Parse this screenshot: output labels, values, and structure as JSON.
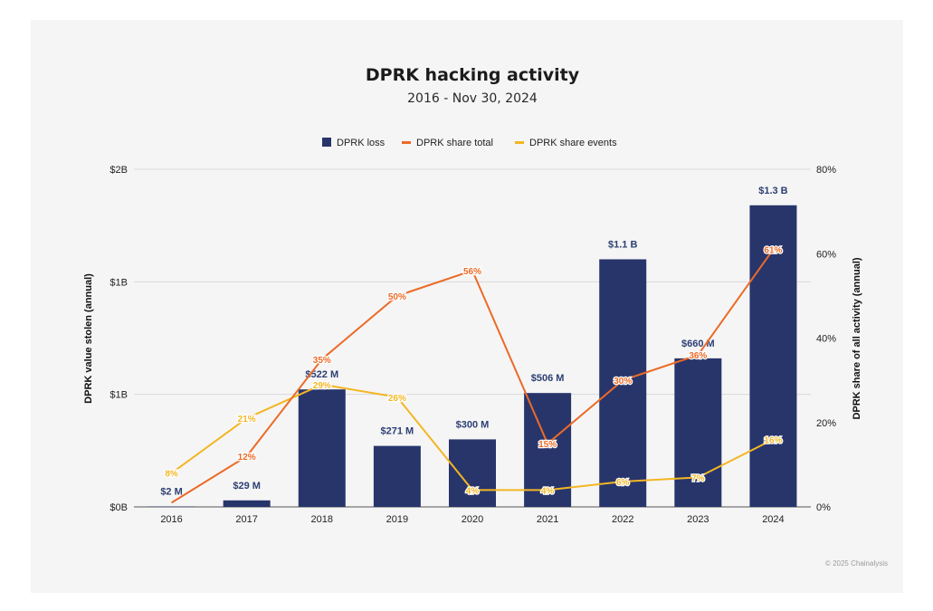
{
  "colors": {
    "bar": "#28356b",
    "share_total": "#ec6a26",
    "share_events": "#f3b623",
    "grid": "#d9d9d9",
    "axis": "#555555"
  },
  "chart_data": {
    "type": "bar+line",
    "title": "DPRK hacking activity",
    "subtitle": "2016 - Nov 30, 2024",
    "categories": [
      "2016",
      "2017",
      "2018",
      "2019",
      "2020",
      "2021",
      "2022",
      "2023",
      "2024"
    ],
    "left_axis": {
      "title": "DPRK value stolen (annual)",
      "ylim": [
        0,
        1.5
      ],
      "ticks": [
        0,
        0.5,
        1.0,
        1.5
      ],
      "tick_labels": [
        "$0B",
        "$1B",
        "$1B",
        "$2B"
      ]
    },
    "right_axis": {
      "title": "DPRK share of all activity (annual)",
      "ylim": [
        0,
        80
      ],
      "ticks": [
        0,
        20,
        40,
        60,
        80
      ],
      "tick_labels": [
        "0%",
        "20%",
        "40%",
        "60%",
        "80%"
      ]
    },
    "series": [
      {
        "name": "DPRK loss",
        "type": "bar",
        "axis": "left",
        "values": [
          0.002,
          0.029,
          0.522,
          0.271,
          0.3,
          0.506,
          1.1,
          0.66,
          1.34
        ],
        "labels": [
          "$2  M",
          "$29  M",
          "$522  M",
          "$271  M",
          "$300  M",
          "$506  M",
          "$1.1 B",
          "$660  M",
          "$1.3 B"
        ]
      },
      {
        "name": "DPRK share total",
        "type": "line",
        "axis": "right",
        "values": [
          1,
          12,
          35,
          50,
          56,
          15,
          30,
          36,
          61
        ],
        "labels": [
          "",
          "12%",
          "35%",
          "50%",
          "56%",
          "15%",
          "30%",
          "36%",
          "61%"
        ]
      },
      {
        "name": "DPRK share events",
        "type": "line",
        "axis": "right",
        "values": [
          8,
          21,
          29,
          26,
          4,
          4,
          6,
          7,
          16
        ],
        "labels": [
          "8%",
          "21%",
          "29%",
          "26%",
          "4%",
          "4%",
          "6%",
          "7%",
          "16%"
        ]
      }
    ],
    "legend": [
      "DPRK loss",
      "DPRK share total",
      "DPRK share events"
    ],
    "legend_position": "top-center",
    "copyright": "© 2025 Chainalysis"
  }
}
